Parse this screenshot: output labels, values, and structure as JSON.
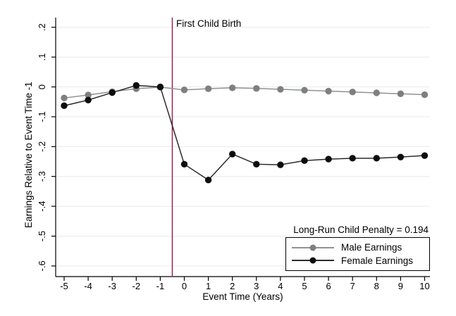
{
  "figure": {
    "event_line_label": "First Child Birth",
    "annotation": "Long-Run Child Penalty = 0.194",
    "x_axis_title": "Event Time (Years)",
    "y_axis_title": "Earnings Relative to Event Time -1"
  },
  "legend": {
    "items": [
      {
        "label": "Male Earnings",
        "line_color": "#919191",
        "marker_color": "#7f7f7f"
      },
      {
        "label": "Female Earnings",
        "line_color": "#2b2b2b",
        "marker_color": "#0d0d0d"
      }
    ]
  },
  "chart_data": {
    "type": "line",
    "title": "",
    "xlabel": "Event Time (Years)",
    "ylabel": "Earnings Relative to Event Time -1",
    "x": [
      -5,
      -4,
      -3,
      -2,
      -1,
      0,
      1,
      2,
      3,
      4,
      5,
      6,
      7,
      8,
      9,
      10
    ],
    "series": [
      {
        "name": "Male Earnings",
        "line_color": "#919191",
        "marker_color": "#7f7f7f",
        "values": [
          -0.037,
          -0.027,
          -0.016,
          -0.006,
          -0.001,
          -0.01,
          -0.006,
          -0.003,
          -0.005,
          -0.008,
          -0.011,
          -0.014,
          -0.017,
          -0.02,
          -0.023,
          -0.026
        ]
      },
      {
        "name": "Female Earnings",
        "line_color": "#2b2b2b",
        "marker_color": "#0d0d0d",
        "values": [
          -0.063,
          -0.044,
          -0.019,
          0.005,
          0.0,
          -0.259,
          -0.312,
          -0.225,
          -0.259,
          -0.261,
          -0.247,
          -0.242,
          -0.239,
          -0.239,
          -0.235,
          -0.23
        ]
      }
    ],
    "xticks": [
      -5,
      -4,
      -3,
      -2,
      -1,
      0,
      1,
      2,
      3,
      4,
      5,
      6,
      7,
      8,
      9,
      10
    ],
    "yticks": [
      0.2,
      0.1,
      0,
      -0.1,
      -0.2,
      -0.3,
      -0.4,
      -0.5,
      -0.6
    ],
    "ytick_labels": [
      ".2",
      ".1",
      "0",
      "-.1",
      "-.2",
      "-.3",
      "-.4",
      "-.5",
      "-.6"
    ],
    "xlim": [
      -5.6,
      10.3
    ],
    "ylim": [
      -0.64,
      0.24
    ],
    "vline": {
      "x": -0.5,
      "color": "#a11547",
      "label": "First Child Birth"
    },
    "grid": true,
    "grid_color": "#e4ebee",
    "legend_position": "inside-bottom-right",
    "annotation": "Long-Run Child Penalty = 0.194"
  }
}
